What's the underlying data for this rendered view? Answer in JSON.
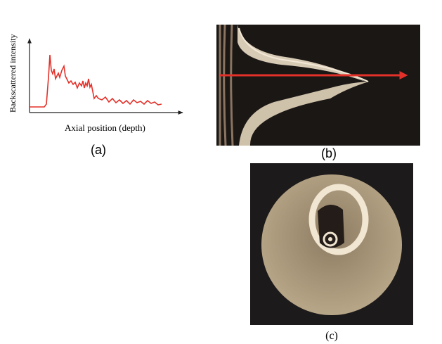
{
  "chart_data": {
    "type": "line",
    "y_label": "Backscattered intensity",
    "x_label": "Axial position (depth)",
    "caption": "(a)",
    "color": "#e3312a",
    "xlim": [
      0,
      200
    ],
    "ylim": [
      0,
      100
    ],
    "x": [
      0,
      21,
      24,
      27,
      29,
      31,
      33,
      35,
      37,
      39,
      41,
      43,
      46,
      49,
      51,
      53,
      56,
      59,
      62,
      65,
      68,
      71,
      74,
      76,
      78,
      80,
      82,
      84,
      86,
      88,
      90,
      92,
      95,
      98,
      103,
      108,
      113,
      118,
      123,
      128,
      133,
      138,
      143,
      148,
      153,
      158,
      163,
      168,
      173,
      178,
      183,
      188
    ],
    "values": [
      8,
      8,
      12,
      50,
      82,
      60,
      55,
      62,
      48,
      52,
      56,
      50,
      60,
      66,
      52,
      48,
      42,
      45,
      40,
      43,
      35,
      42,
      38,
      45,
      35,
      42,
      38,
      48,
      36,
      40,
      30,
      20,
      24,
      20,
      18,
      22,
      15,
      20,
      14,
      18,
      13,
      17,
      12,
      18,
      14,
      16,
      12,
      17,
      13,
      15,
      11,
      12
    ]
  },
  "figure": {
    "captions": [
      "(b)",
      "(c)"
    ]
  }
}
